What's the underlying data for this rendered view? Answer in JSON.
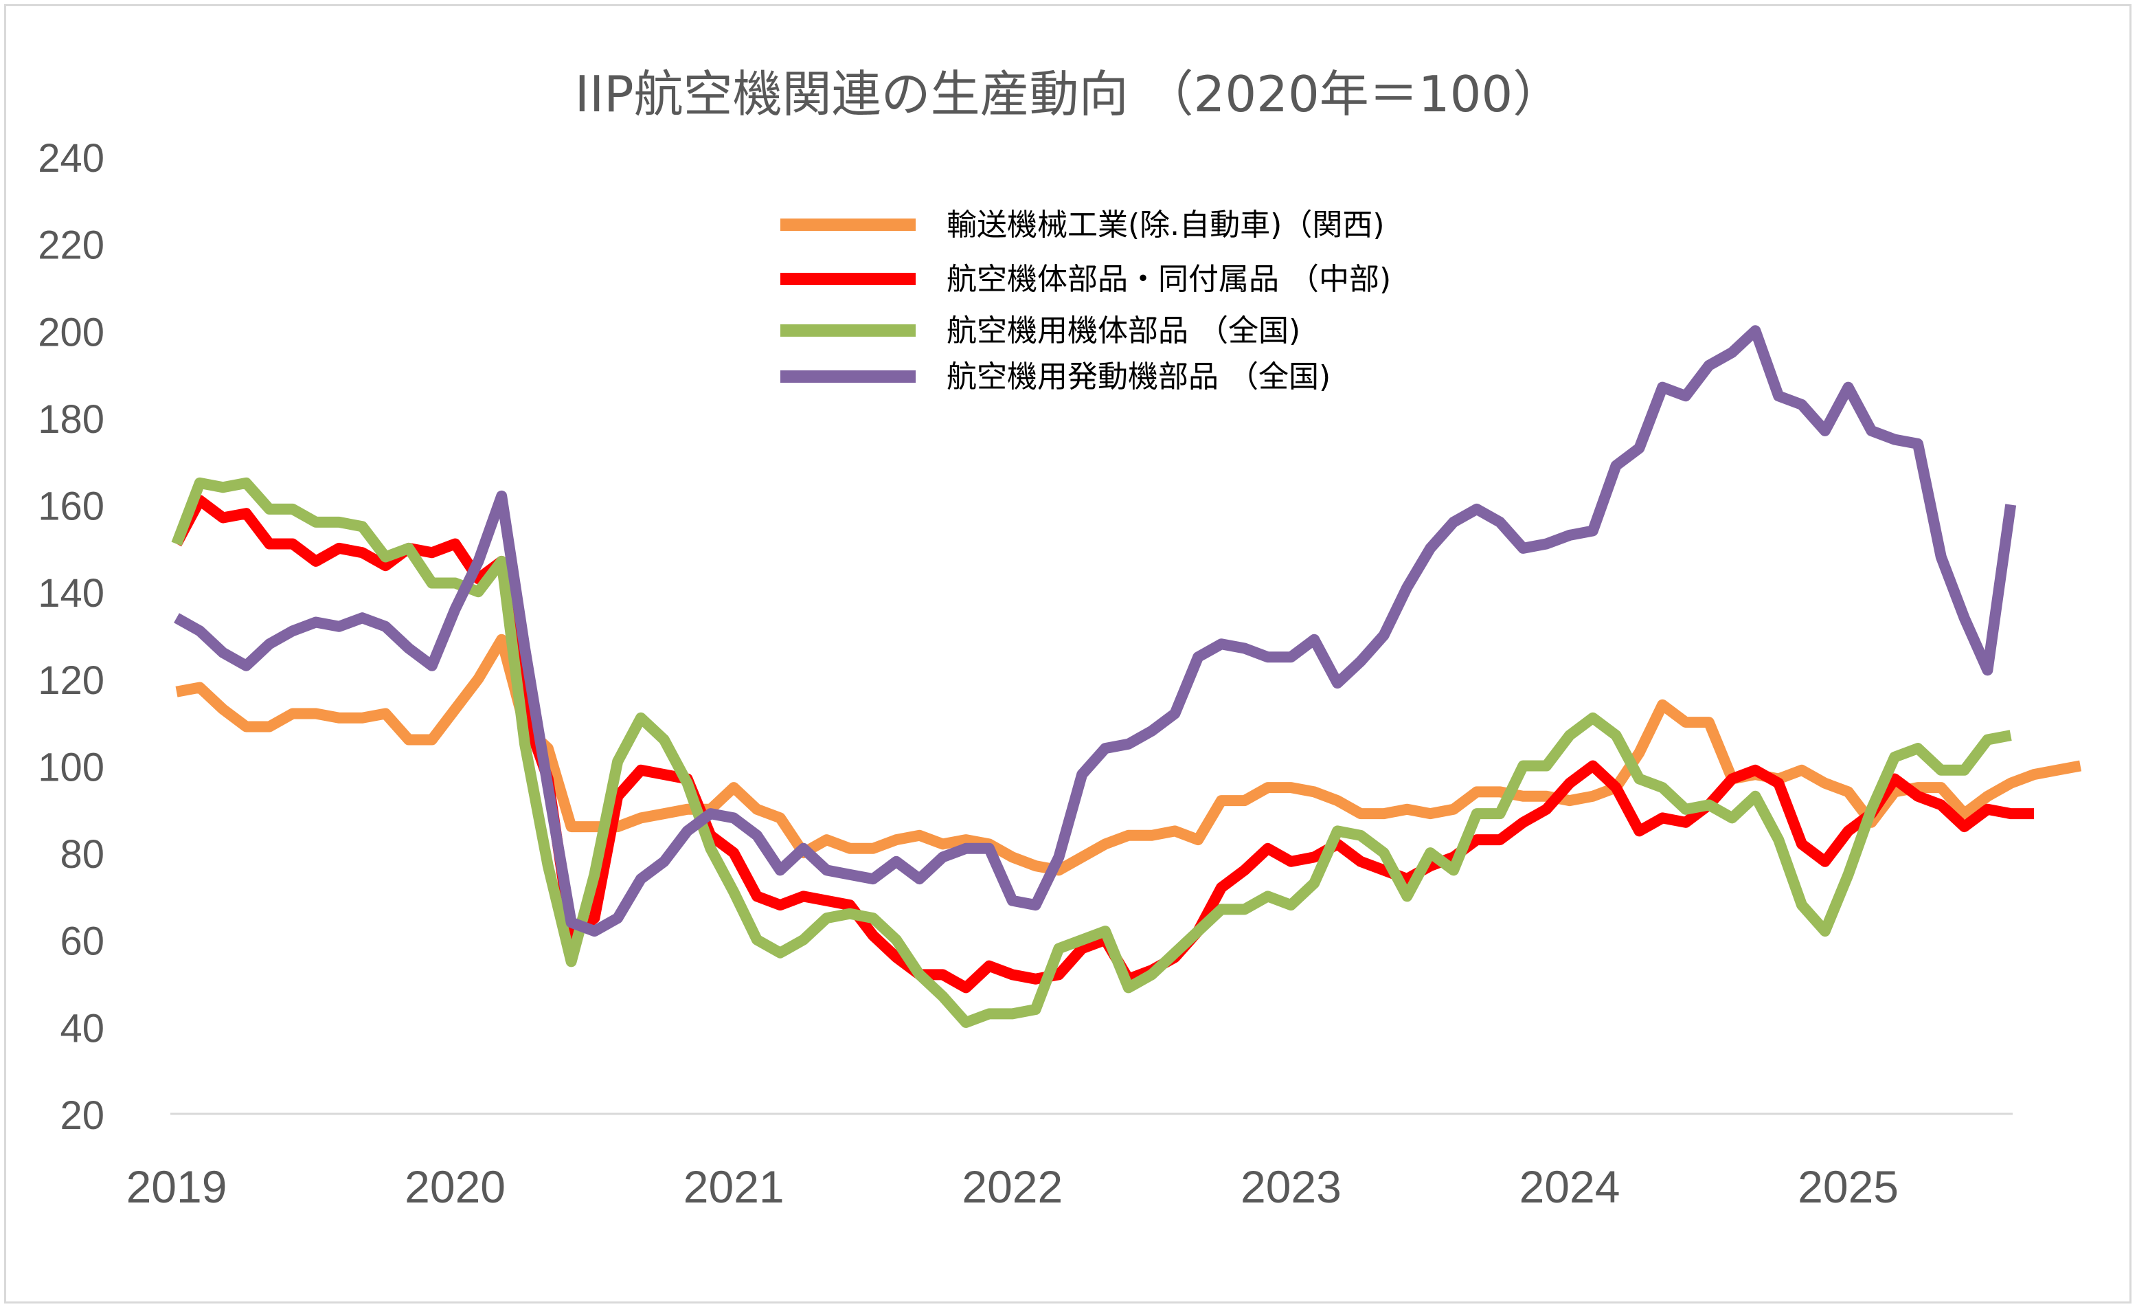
{
  "chart_data": {
    "type": "line",
    "title": "IIP航空機関連の生産動向 （2020年＝100）",
    "xlabel": "",
    "ylabel": "",
    "ylim": [
      20,
      240
    ],
    "y_ticks": [
      "240",
      "220",
      "200",
      "180",
      "160",
      "140",
      "120",
      "100",
      "80",
      "60",
      "40",
      "20"
    ],
    "x_ticks": [
      "2019",
      "2020",
      "2021",
      "2022",
      "2023",
      "2024",
      "2025"
    ],
    "x_start": "2019-01",
    "grid": false,
    "legend_position": "top-center",
    "series": [
      {
        "name": "輸送機械工業(除.自動車)（関西)",
        "color": "#f79646",
        "values": [
          117,
          118,
          113,
          109,
          109,
          112,
          112,
          111,
          111,
          112,
          106,
          106,
          113,
          120,
          129,
          109,
          104,
          86,
          86,
          86,
          88,
          89,
          90,
          90,
          95,
          90,
          88,
          80,
          83,
          81,
          81,
          83,
          84,
          82,
          83,
          82,
          79,
          77,
          76,
          79,
          82,
          84,
          84,
          85,
          83,
          92,
          92,
          95,
          95,
          94,
          92,
          89,
          89,
          90,
          89,
          90,
          94,
          94,
          93,
          93,
          92,
          93,
          95,
          103,
          114,
          110,
          110,
          97,
          98,
          97,
          99,
          96,
          94,
          87,
          94,
          95,
          95,
          89,
          93,
          96,
          98,
          99,
          100
        ]
      },
      {
        "name": "航空機体部品・同付属品 （中部)",
        "color": "#ff0000",
        "values": [
          151,
          161,
          157,
          158,
          151,
          151,
          147,
          150,
          149,
          146,
          150,
          149,
          151,
          143,
          147,
          112,
          97,
          61,
          65,
          93,
          99,
          98,
          97,
          84,
          80,
          70,
          68,
          70,
          69,
          68,
          61,
          56,
          52,
          52,
          49,
          54,
          52,
          51,
          52,
          58,
          60,
          51,
          53,
          56,
          62,
          72,
          76,
          81,
          78,
          79,
          82,
          78,
          76,
          74,
          77,
          79,
          83,
          83,
          87,
          90,
          96,
          100,
          95,
          85,
          88,
          87,
          91,
          97,
          99,
          96,
          82,
          78,
          85,
          89,
          97,
          93,
          91,
          86,
          90,
          89,
          89
        ]
      },
      {
        "name": "航空機用機体部品 （全国)",
        "color": "#9bbb59",
        "values": [
          151,
          165,
          164,
          165,
          159,
          159,
          156,
          156,
          155,
          148,
          150,
          142,
          142,
          140,
          147,
          105,
          77,
          55,
          75,
          101,
          111,
          106,
          96,
          81,
          71,
          60,
          57,
          60,
          65,
          66,
          65,
          60,
          52,
          47,
          41,
          43,
          43,
          44,
          58,
          60,
          62,
          49,
          52,
          57,
          62,
          67,
          67,
          70,
          68,
          73,
          85,
          84,
          80,
          70,
          80,
          76,
          89,
          89,
          100,
          100,
          107,
          111,
          107,
          97,
          95,
          90,
          91,
          88,
          93,
          83,
          68,
          62,
          75,
          90,
          102,
          104,
          99,
          99,
          106,
          107
        ]
      },
      {
        "name": "航空機用発動機部品 （全国)",
        "color": "#8064a2",
        "values": [
          134,
          131,
          126,
          123,
          128,
          131,
          133,
          132,
          134,
          132,
          127,
          123,
          136,
          147,
          162,
          127,
          95,
          64,
          62,
          65,
          74,
          78,
          85,
          89,
          88,
          84,
          76,
          81,
          76,
          75,
          74,
          78,
          74,
          79,
          81,
          81,
          69,
          68,
          79,
          98,
          104,
          105,
          108,
          112,
          125,
          128,
          127,
          125,
          125,
          129,
          119,
          124,
          130,
          141,
          150,
          156,
          159,
          156,
          150,
          151,
          153,
          154,
          169,
          173,
          187,
          185,
          192,
          195,
          200,
          185,
          183,
          177,
          187,
          177,
          175,
          174,
          148,
          134,
          122,
          160
        ]
      }
    ]
  }
}
